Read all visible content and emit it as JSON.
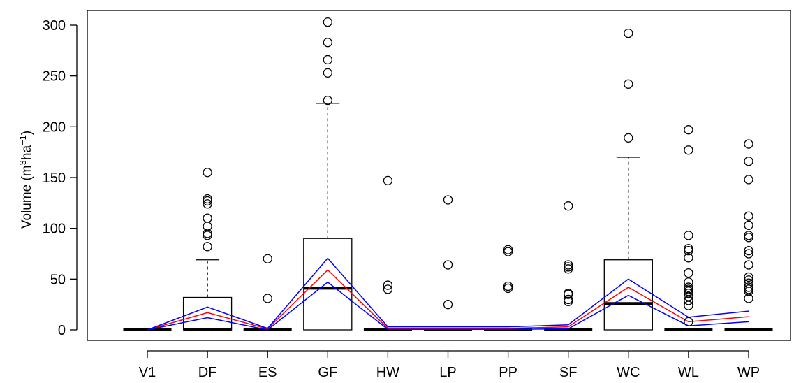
{
  "chart_data": {
    "type": "boxplot",
    "title": "",
    "ylabel": {
      "main": "Volume (m",
      "sup1": "3",
      "mid": "ha",
      "sup2": "−1",
      "end": ")"
    },
    "ylim": [
      -10,
      315
    ],
    "yticks": [
      0,
      50,
      100,
      150,
      200,
      250,
      300
    ],
    "yticklabels": [
      "0",
      "50",
      "100",
      "150",
      "200",
      "250",
      "300"
    ],
    "categories": [
      "V1",
      "DF",
      "ES",
      "GF",
      "HW",
      "LP",
      "PP",
      "SF",
      "WC",
      "WL",
      "WP"
    ],
    "boxes": [
      {
        "label": "V1",
        "q1": 0,
        "median": 0,
        "q3": 0,
        "whisker_low": 0,
        "whisker_high": 0,
        "outliers": []
      },
      {
        "label": "DF",
        "q1": 0,
        "median": 0,
        "q3": 32,
        "whisker_low": 0,
        "whisker_high": 69,
        "outliers": [
          82,
          93,
          95,
          102,
          110,
          124,
          127,
          129,
          155
        ]
      },
      {
        "label": "ES",
        "q1": 0,
        "median": 0,
        "q3": 0,
        "whisker_low": 0,
        "whisker_high": 0,
        "outliers": [
          31,
          70
        ]
      },
      {
        "label": "GF",
        "q1": 0,
        "median": 41,
        "q3": 90,
        "whisker_low": 0,
        "whisker_high": 223,
        "outliers": [
          226,
          253,
          266,
          283,
          303
        ]
      },
      {
        "label": "HW",
        "q1": 0,
        "median": 0,
        "q3": 0,
        "whisker_low": 0,
        "whisker_high": 0,
        "outliers": [
          40,
          44,
          147
        ]
      },
      {
        "label": "LP",
        "q1": 0,
        "median": 0,
        "q3": 0,
        "whisker_low": 0,
        "whisker_high": 0,
        "outliers": [
          25,
          64,
          128
        ]
      },
      {
        "label": "PP",
        "q1": 0,
        "median": 0,
        "q3": 0,
        "whisker_low": 0,
        "whisker_high": 0,
        "outliers": [
          41,
          43,
          77,
          79
        ]
      },
      {
        "label": "SF",
        "q1": 0,
        "median": 0,
        "q3": 0,
        "whisker_low": 0,
        "whisker_high": 0,
        "outliers": [
          28,
          30,
          35,
          36,
          60,
          62,
          64,
          122
        ]
      },
      {
        "label": "WC",
        "q1": 0,
        "median": 26,
        "q3": 69,
        "whisker_low": 0,
        "whisker_high": 170,
        "outliers": [
          189,
          242,
          292
        ]
      },
      {
        "label": "WL",
        "q1": 0,
        "median": 0,
        "q3": 0,
        "whisker_low": 0,
        "whisker_high": 0,
        "outliers": [
          8,
          24,
          29,
          33,
          36,
          38,
          40,
          42,
          47,
          56,
          71,
          78,
          80,
          93,
          177,
          197
        ]
      },
      {
        "label": "WP",
        "q1": 0,
        "median": 0,
        "q3": 0,
        "whisker_low": 0,
        "whisker_high": 0,
        "outliers": [
          31,
          38,
          40,
          42,
          46,
          49,
          52,
          64,
          75,
          78,
          91,
          93,
          103,
          112,
          148,
          166,
          183
        ]
      }
    ],
    "series": [
      {
        "color": "#ff0000",
        "values": [
          0,
          17,
          1,
          59,
          1.5,
          1.5,
          1.5,
          3,
          42,
          8,
          13
        ]
      },
      {
        "color": "#0000ff",
        "values": [
          0,
          22.5,
          1.5,
          70.5,
          3,
          3,
          3,
          5,
          50,
          12.5,
          18.5
        ]
      },
      {
        "color": "#0000ff",
        "values": [
          0,
          12,
          0,
          47,
          0.5,
          0.5,
          0.5,
          1,
          34,
          4,
          8
        ]
      }
    ],
    "grid": false,
    "legend": "none"
  }
}
